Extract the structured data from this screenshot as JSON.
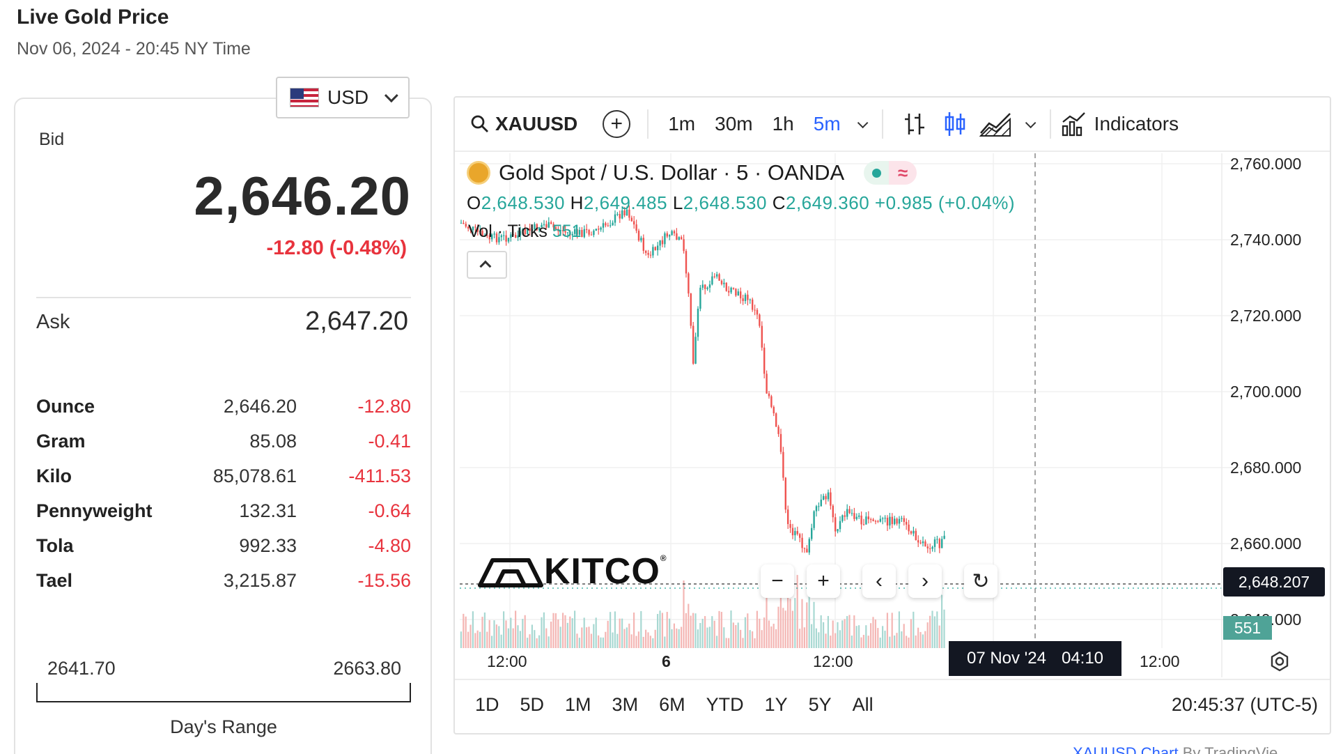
{
  "header": {
    "title": "Live Gold Price",
    "date": "Nov 06, 2024 - 20:45 NY Time"
  },
  "currency": {
    "selected": "USD"
  },
  "bid": {
    "label": "Bid",
    "value": "2,646.20",
    "change": "-12.80 (-0.48%)"
  },
  "ask": {
    "label": "Ask",
    "value": "2,647.20"
  },
  "units": [
    {
      "name": "Ounce",
      "price": "2,646.20",
      "change": "-12.80"
    },
    {
      "name": "Gram",
      "price": "85.08",
      "change": "-0.41"
    },
    {
      "name": "Kilo",
      "price": "85,078.61",
      "change": "-411.53"
    },
    {
      "name": "Pennyweight",
      "price": "132.31",
      "change": "-0.64"
    },
    {
      "name": "Tola",
      "price": "992.33",
      "change": "-4.80"
    },
    {
      "name": "Tael",
      "price": "3,215.87",
      "change": "-15.56"
    }
  ],
  "day_range": {
    "low": "2641.70",
    "high": "2663.80",
    "label": "Day's Range"
  },
  "toolbar": {
    "symbol": "XAUUSD",
    "intervals": [
      "1m",
      "30m",
      "1h",
      "5m"
    ],
    "active_interval": "5m",
    "indicators_label": "Indicators"
  },
  "legend": {
    "title": "Gold Spot / U.S. Dollar · 5 · OANDA",
    "o_label": "O",
    "o": "2,648.530",
    "h_label": "H",
    "h": "2,649.485",
    "l_label": "L",
    "l": "2,648.530",
    "c_label": "C",
    "c": "2,649.360",
    "chg": "+0.985 (+0.04%)",
    "vol_label": "Vol · Ticks",
    "vol_value": "551"
  },
  "yaxis": [
    "2,760.000",
    "2,740.000",
    "2,720.000",
    "2,700.000",
    "2,680.000",
    "2,660.000",
    "2,640.000"
  ],
  "price_tag": "2,648.207",
  "vol_tag": "551",
  "xaxis": [
    "12:00",
    "6",
    "12:00",
    "12:00"
  ],
  "crosshair": {
    "date": "07 Nov '24",
    "time": "04:10"
  },
  "watermark": "KITCO",
  "time_ranges": [
    "1D",
    "5D",
    "1M",
    "3M",
    "6M",
    "YTD",
    "1Y",
    "5Y",
    "All"
  ],
  "clock": "20:45:37 (UTC-5)",
  "footer": {
    "link": "XAUUSD Chart",
    "rest": " By TradingVie"
  },
  "colors": {
    "up": "#26a69a",
    "down": "#ef5350",
    "negative_text": "#e8333d",
    "active": "#2962ff"
  }
}
